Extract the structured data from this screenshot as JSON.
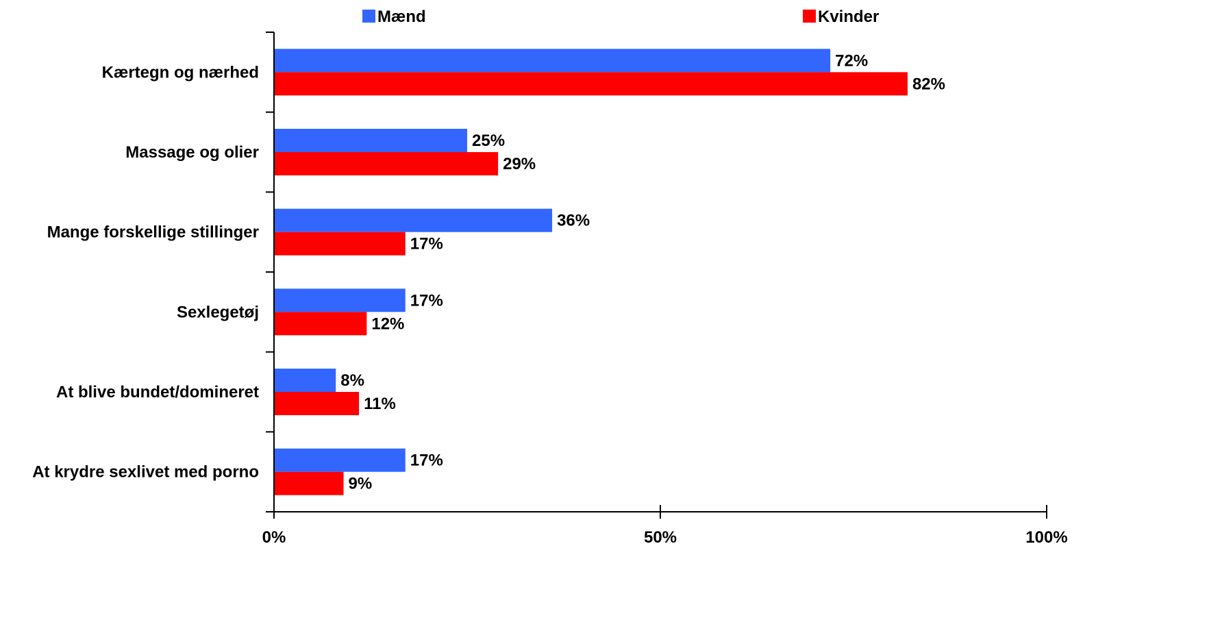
{
  "chart_data": {
    "type": "bar",
    "orientation": "horizontal",
    "title": "",
    "xlabel": "",
    "ylabel": "",
    "categories": [
      "Kærtegn og nærhed",
      "Massage og olier",
      "Mange forskellige stillinger",
      "Sexlegetøj",
      "At blive bundet/domineret",
      "At krydre sexlivet med porno"
    ],
    "series": [
      {
        "name": "Mænd",
        "color": "#3366ff",
        "values": [
          72,
          25,
          36,
          17,
          8,
          17
        ],
        "labels": [
          "72%",
          "25%",
          "36%",
          "17%",
          "8%",
          "17%"
        ]
      },
      {
        "name": "Kvinder",
        "color": "#ff0000",
        "values": [
          82,
          29,
          17,
          12,
          11,
          9
        ],
        "labels": [
          "82%",
          "29%",
          "17%",
          "12%",
          "11%",
          "9%"
        ]
      }
    ],
    "xlim": [
      0,
      100
    ],
    "x_ticks": [
      0,
      50,
      100
    ],
    "x_tick_labels": [
      "0%",
      "50%",
      "100%"
    ],
    "grid": false,
    "legend_position": "top"
  }
}
